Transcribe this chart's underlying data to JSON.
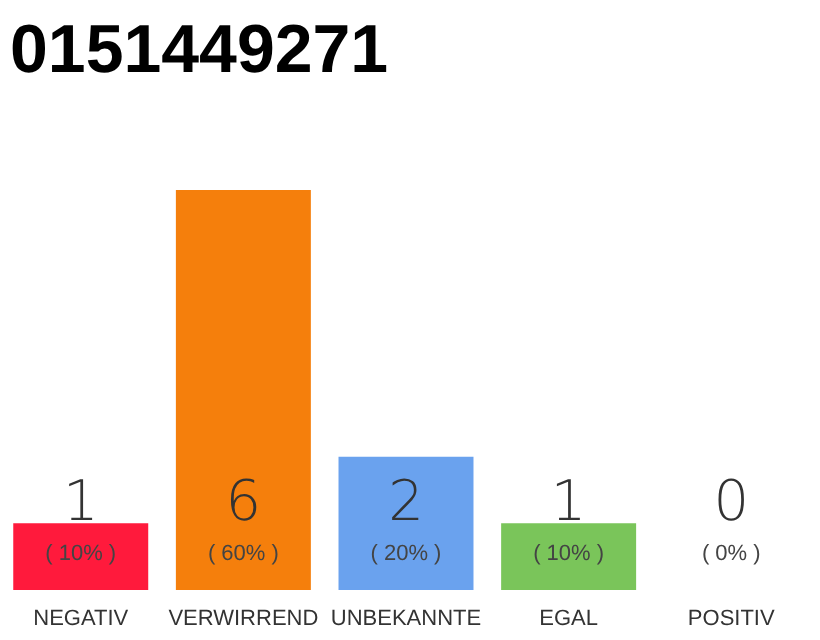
{
  "chart_data": {
    "type": "bar",
    "title": "0151449271",
    "categories": [
      "NEGATIV",
      "VERWIRREND",
      "UNBEKANNTE",
      "EGAL",
      "POSITIV"
    ],
    "values": [
      1,
      6,
      2,
      1,
      0
    ],
    "colors": [
      "#ff1a3c",
      "#f57f0c",
      "#6aa2ee",
      "#7ac55a",
      "#7ac55a"
    ],
    "value_labels": [
      "1",
      "6",
      "2",
      "1",
      "0"
    ],
    "annotations": [
      {
        "text": "( 10% )",
        "x": "NEGATIV",
        "y": 0
      },
      {
        "text": "( 60% )",
        "x": "VERWIRREND",
        "y": 0
      },
      {
        "text": "( 20% )",
        "x": "UNBEKANNTE",
        "y": 0
      },
      {
        "text": "( 10% )",
        "x": "EGAL",
        "y": 0
      },
      {
        "text": "( 0% )",
        "x": "POSITIV",
        "y": 0
      }
    ]
  }
}
